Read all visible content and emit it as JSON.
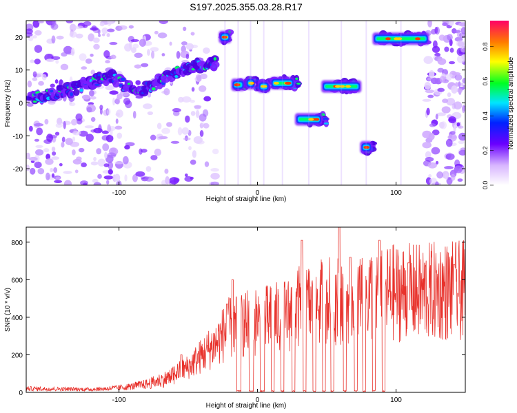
{
  "title": "S197.2025.355.03.28.R17",
  "chart_data": [
    {
      "type": "heatmap",
      "title": "S197.2025.355.03.28.R17",
      "xlabel": "Height of straight line (km)",
      "ylabel": "Frequency (Hz)",
      "xlim": [
        -167,
        150
      ],
      "ylim": [
        -25,
        25
      ],
      "xticks": [
        -100,
        0,
        100
      ],
      "yticks": [
        -20,
        -10,
        0,
        10,
        20
      ],
      "colorbar": {
        "label": "Normalized spectral amplitude",
        "range": [
          0,
          0.95
        ],
        "ticks": [
          0.0,
          0.2,
          0.4,
          0.6,
          0.8
        ]
      },
      "ridge": [
        {
          "x": -165,
          "y": 1.5
        },
        {
          "x": -155,
          "y": 2
        },
        {
          "x": -145,
          "y": 3
        },
        {
          "x": -135,
          "y": 4
        },
        {
          "x": -125,
          "y": 5.5
        },
        {
          "x": -115,
          "y": 7
        },
        {
          "x": -105,
          "y": 8
        },
        {
          "x": -95,
          "y": 5
        },
        {
          "x": -85,
          "y": 4
        },
        {
          "x": -75,
          "y": 5.5
        },
        {
          "x": -65,
          "y": 8
        },
        {
          "x": -55,
          "y": 10
        },
        {
          "x": -45,
          "y": 11.5
        },
        {
          "x": -35,
          "y": 12
        },
        {
          "x": -25,
          "y": 20
        },
        {
          "x": -15,
          "y": 5.5
        },
        {
          "x": -5,
          "y": 6
        },
        {
          "x": 5,
          "y": 5
        },
        {
          "x": 15,
          "y": 6
        },
        {
          "x": 25,
          "y": 6
        },
        {
          "x": 35,
          "y": -5
        },
        {
          "x": 45,
          "y": -5
        },
        {
          "x": 55,
          "y": 5
        },
        {
          "x": 65,
          "y": 5
        },
        {
          "x": 78,
          "y": -13.5
        },
        {
          "x": 90,
          "y": 19.5
        },
        {
          "x": 100,
          "y": 19.5
        },
        {
          "x": 110,
          "y": 19.5
        },
        {
          "x": 120,
          "y": 19.5
        }
      ]
    },
    {
      "type": "line",
      "xlabel": "Height of straight line (km)",
      "ylabel": "SNR (10 * v/v)",
      "xlim": [
        -167,
        150
      ],
      "ylim": [
        0,
        880
      ],
      "xticks": [
        -100,
        0,
        100
      ],
      "yticks": [
        0,
        200,
        400,
        600,
        800
      ],
      "color": "#e8322c",
      "envelope": [
        {
          "x": -167,
          "y": 25
        },
        {
          "x": -140,
          "y": 22
        },
        {
          "x": -120,
          "y": 20
        },
        {
          "x": -100,
          "y": 30
        },
        {
          "x": -90,
          "y": 40
        },
        {
          "x": -80,
          "y": 55
        },
        {
          "x": -70,
          "y": 80
        },
        {
          "x": -60,
          "y": 110
        },
        {
          "x": -50,
          "y": 150
        },
        {
          "x": -40,
          "y": 220
        },
        {
          "x": -30,
          "y": 290
        },
        {
          "x": -25,
          "y": 340
        },
        {
          "x": -20,
          "y": 380
        },
        {
          "x": -10,
          "y": 400
        },
        {
          "x": 0,
          "y": 420
        },
        {
          "x": 10,
          "y": 430
        },
        {
          "x": 20,
          "y": 450
        },
        {
          "x": 30,
          "y": 500
        },
        {
          "x": 40,
          "y": 520
        },
        {
          "x": 50,
          "y": 540
        },
        {
          "x": 60,
          "y": 560
        },
        {
          "x": 70,
          "y": 560
        },
        {
          "x": 80,
          "y": 580
        },
        {
          "x": 90,
          "y": 590
        },
        {
          "x": 100,
          "y": 590
        },
        {
          "x": 110,
          "y": 590
        },
        {
          "x": 120,
          "y": 590
        },
        {
          "x": 130,
          "y": 600
        },
        {
          "x": 140,
          "y": 600
        },
        {
          "x": 150,
          "y": 600
        }
      ],
      "peaks": [
        {
          "x": -55,
          "y": 200
        },
        {
          "x": -22,
          "y": 470
        },
        {
          "x": -18,
          "y": 600
        },
        {
          "x": 32,
          "y": 810
        },
        {
          "x": 59,
          "y": 880
        },
        {
          "x": 67,
          "y": 720
        },
        {
          "x": 88,
          "y": 810
        },
        {
          "x": 109,
          "y": 690
        },
        {
          "x": 142,
          "y": 680
        }
      ],
      "dropouts": [
        {
          "from": -15,
          "to": -12
        },
        {
          "from": -6,
          "to": -3
        },
        {
          "from": 2,
          "to": 5
        },
        {
          "from": 10,
          "to": 12
        },
        {
          "from": 17,
          "to": 19
        },
        {
          "from": 25,
          "to": 27
        },
        {
          "from": 33,
          "to": 35
        },
        {
          "from": 40,
          "to": 42
        },
        {
          "from": 47,
          "to": 49
        },
        {
          "from": 53,
          "to": 55
        },
        {
          "from": 62,
          "to": 64
        },
        {
          "from": 70,
          "to": 72
        },
        {
          "from": 76,
          "to": 78
        },
        {
          "from": 83,
          "to": 85
        },
        {
          "from": 90,
          "to": 92
        }
      ]
    }
  ]
}
